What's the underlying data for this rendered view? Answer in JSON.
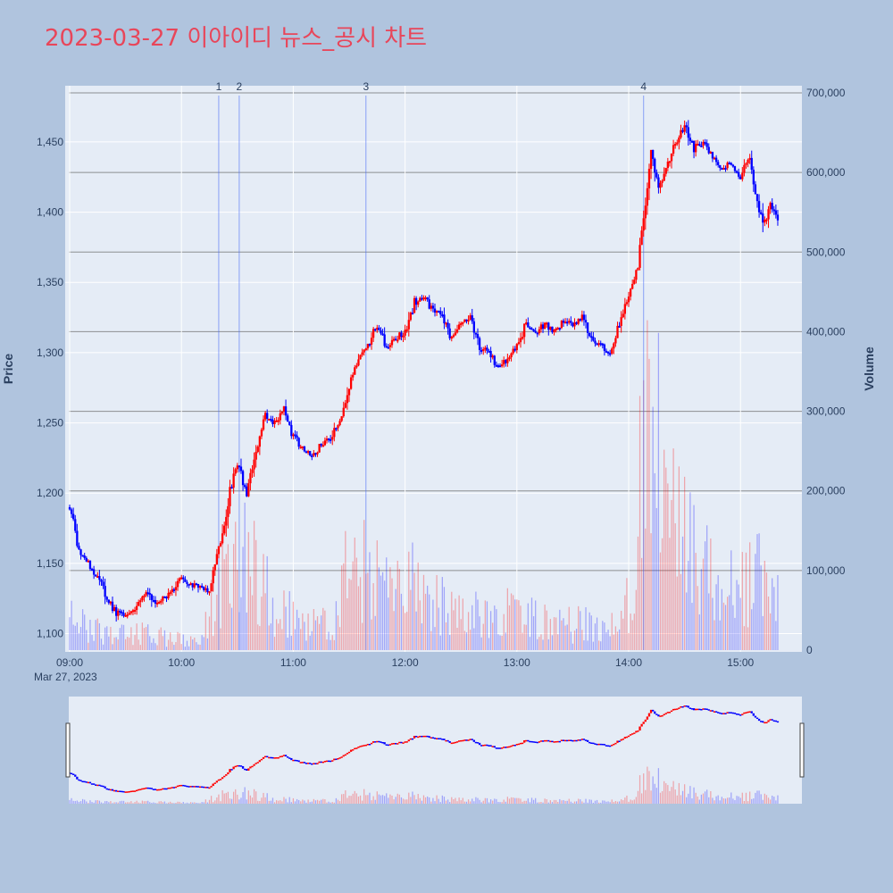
{
  "title": "2023-03-27 이아이디 뉴스_공시 차트",
  "chart_data": {
    "type": "candlestick",
    "title": "2023-03-27 이아이디 뉴스_공시 차트",
    "date_label": "Mar 27, 2023",
    "ylabel": "Price",
    "y2label": "Volume",
    "x_ticks": [
      "09:00",
      "10:00",
      "11:00",
      "12:00",
      "13:00",
      "14:00",
      "15:00"
    ],
    "price_ticks": [
      1100,
      1150,
      1200,
      1250,
      1300,
      1350,
      1400,
      1450
    ],
    "price_range": [
      1087,
      1490
    ],
    "volume_ticks": [
      0,
      100000,
      200000,
      300000,
      400000,
      500000,
      600000,
      700000
    ],
    "volume_tick_labels": [
      "0",
      "100,000",
      "200,000",
      "300,000",
      "400,000",
      "500,000",
      "600,000",
      "700,000"
    ],
    "volume_range": [
      0,
      700000
    ],
    "time_range": [
      "09:00",
      "15:32"
    ],
    "up_color": "#ff0000",
    "down_color": "#0000ff",
    "news_markers": [
      {
        "label": "1",
        "time": "10:20"
      },
      {
        "label": "2",
        "time": "10:31"
      },
      {
        "label": "3",
        "time": "11:39"
      },
      {
        "label": "4",
        "time": "14:08"
      }
    ],
    "price_path": [
      [
        "09:00",
        1190
      ],
      [
        "09:05",
        1160
      ],
      [
        "09:10",
        1150
      ],
      [
        "09:15",
        1140
      ],
      [
        "09:20",
        1125
      ],
      [
        "09:25",
        1115
      ],
      [
        "09:30",
        1112
      ],
      [
        "09:35",
        1118
      ],
      [
        "09:40",
        1130
      ],
      [
        "09:45",
        1122
      ],
      [
        "09:50",
        1125
      ],
      [
        "09:55",
        1130
      ],
      [
        "10:00",
        1140
      ],
      [
        "10:05",
        1135
      ],
      [
        "10:10",
        1133
      ],
      [
        "10:15",
        1130
      ],
      [
        "10:20",
        1160
      ],
      [
        "10:25",
        1195
      ],
      [
        "10:30",
        1220
      ],
      [
        "10:35",
        1200
      ],
      [
        "10:40",
        1230
      ],
      [
        "10:45",
        1255
      ],
      [
        "10:50",
        1250
      ],
      [
        "10:55",
        1260
      ],
      [
        "11:00",
        1240
      ],
      [
        "11:05",
        1232
      ],
      [
        "11:10",
        1225
      ],
      [
        "11:15",
        1235
      ],
      [
        "11:20",
        1240
      ],
      [
        "11:25",
        1250
      ],
      [
        "11:30",
        1275
      ],
      [
        "11:35",
        1295
      ],
      [
        "11:40",
        1305
      ],
      [
        "11:45",
        1320
      ],
      [
        "11:50",
        1305
      ],
      [
        "11:55",
        1310
      ],
      [
        "12:00",
        1315
      ],
      [
        "12:05",
        1335
      ],
      [
        "12:10",
        1340
      ],
      [
        "12:15",
        1330
      ],
      [
        "12:20",
        1325
      ],
      [
        "12:25",
        1310
      ],
      [
        "12:30",
        1320
      ],
      [
        "12:35",
        1325
      ],
      [
        "12:40",
        1305
      ],
      [
        "12:45",
        1300
      ],
      [
        "12:50",
        1290
      ],
      [
        "12:55",
        1295
      ],
      [
        "13:00",
        1305
      ],
      [
        "13:05",
        1320
      ],
      [
        "13:10",
        1315
      ],
      [
        "13:15",
        1320
      ],
      [
        "13:20",
        1315
      ],
      [
        "13:25",
        1322
      ],
      [
        "13:30",
        1320
      ],
      [
        "13:35",
        1325
      ],
      [
        "13:40",
        1310
      ],
      [
        "13:45",
        1305
      ],
      [
        "13:50",
        1300
      ],
      [
        "13:55",
        1320
      ],
      [
        "14:00",
        1340
      ],
      [
        "14:05",
        1360
      ],
      [
        "14:08",
        1400
      ],
      [
        "14:12",
        1440
      ],
      [
        "14:16",
        1420
      ],
      [
        "14:20",
        1430
      ],
      [
        "14:25",
        1450
      ],
      [
        "14:30",
        1460
      ],
      [
        "14:35",
        1445
      ],
      [
        "14:40",
        1450
      ],
      [
        "14:45",
        1440
      ],
      [
        "14:50",
        1430
      ],
      [
        "14:55",
        1435
      ],
      [
        "15:00",
        1425
      ],
      [
        "15:05",
        1440
      ],
      [
        "15:08",
        1415
      ],
      [
        "15:12",
        1390
      ],
      [
        "15:16",
        1405
      ],
      [
        "15:20",
        1395
      ]
    ],
    "volume_profile": [
      [
        "09:00",
        40000
      ],
      [
        "09:10",
        25000
      ],
      [
        "09:20",
        20000
      ],
      [
        "09:30",
        25000
      ],
      [
        "09:40",
        20000
      ],
      [
        "09:50",
        15000
      ],
      [
        "10:00",
        12000
      ],
      [
        "10:10",
        8000
      ],
      [
        "10:20",
        80000
      ],
      [
        "10:30",
        120000
      ],
      [
        "10:40",
        90000
      ],
      [
        "10:50",
        60000
      ],
      [
        "11:00",
        40000
      ],
      [
        "11:10",
        30000
      ],
      [
        "11:20",
        30000
      ],
      [
        "11:30",
        100000
      ],
      [
        "11:40",
        110000
      ],
      [
        "11:50",
        80000
      ],
      [
        "12:00",
        80000
      ],
      [
        "12:10",
        70000
      ],
      [
        "12:20",
        55000
      ],
      [
        "12:30",
        50000
      ],
      [
        "12:40",
        45000
      ],
      [
        "12:50",
        45000
      ],
      [
        "13:00",
        40000
      ],
      [
        "13:10",
        35000
      ],
      [
        "13:20",
        30000
      ],
      [
        "13:30",
        30000
      ],
      [
        "13:40",
        30000
      ],
      [
        "13:50",
        25000
      ],
      [
        "14:00",
        60000
      ],
      [
        "14:05",
        150000
      ],
      [
        "14:08",
        320000
      ],
      [
        "14:12",
        280000
      ],
      [
        "14:20",
        170000
      ],
      [
        "14:30",
        120000
      ],
      [
        "14:40",
        100000
      ],
      [
        "14:50",
        90000
      ],
      [
        "15:00",
        70000
      ],
      [
        "15:10",
        90000
      ],
      [
        "15:20",
        70000
      ]
    ]
  }
}
